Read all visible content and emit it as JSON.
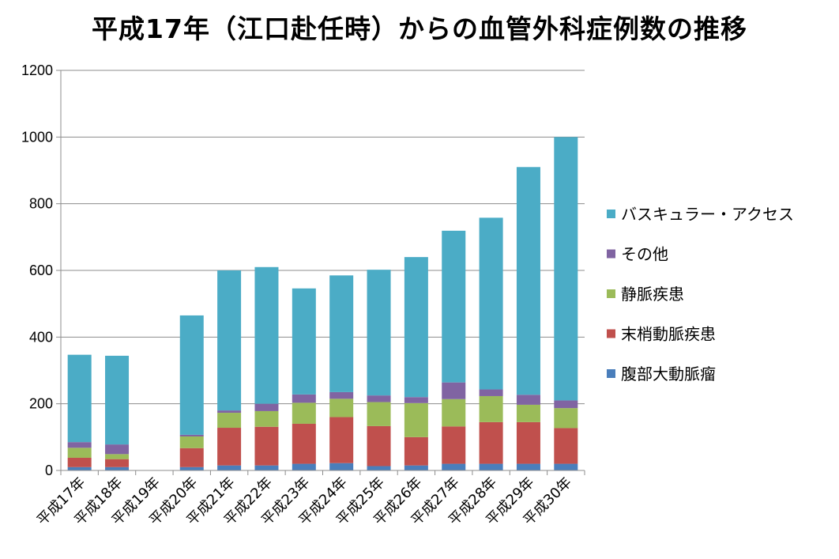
{
  "title": "平成17年（江口赴任時）からの血管外科症例数の推移",
  "chart_data": {
    "type": "bar",
    "stacked": true,
    "title": "平成17年（江口赴任時）からの血管外科症例数の推移",
    "xlabel": "",
    "ylabel": "",
    "ylim": [
      0,
      1200
    ],
    "yticks": [
      0,
      200,
      400,
      600,
      800,
      1000,
      1200
    ],
    "grid": true,
    "legend_position": "right",
    "categories": [
      "平成17年",
      "平成18年",
      "平成19年",
      "平成20年",
      "平成21年",
      "平成22年",
      "平成23年",
      "平成24年",
      "平成25年",
      "平成26年",
      "平成27年",
      "平成28年",
      "平成29年",
      "平成30年"
    ],
    "series": [
      {
        "name": "腹部大動脈瘤",
        "color": "#4a7ebb",
        "values": [
          10,
          10,
          0,
          10,
          15,
          15,
          20,
          22,
          13,
          15,
          20,
          20,
          20,
          20
        ]
      },
      {
        "name": "末梢動脈疾患",
        "color": "#c0504d",
        "values": [
          28,
          24,
          0,
          57,
          113,
          116,
          120,
          138,
          120,
          85,
          112,
          125,
          125,
          107
        ]
      },
      {
        "name": "静脈疾患",
        "color": "#9bbb59",
        "values": [
          30,
          15,
          0,
          35,
          45,
          47,
          63,
          55,
          72,
          102,
          82,
          78,
          52,
          60
        ]
      },
      {
        "name": "その他",
        "color": "#8064a2",
        "values": [
          17,
          29,
          0,
          5,
          7,
          22,
          25,
          20,
          20,
          18,
          50,
          20,
          30,
          23
        ]
      },
      {
        "name": "バスキュラー・アクセス",
        "color": "#4bacc6",
        "values": [
          262,
          266,
          0,
          358,
          420,
          410,
          318,
          350,
          377,
          420,
          455,
          515,
          683,
          790
        ]
      }
    ]
  }
}
